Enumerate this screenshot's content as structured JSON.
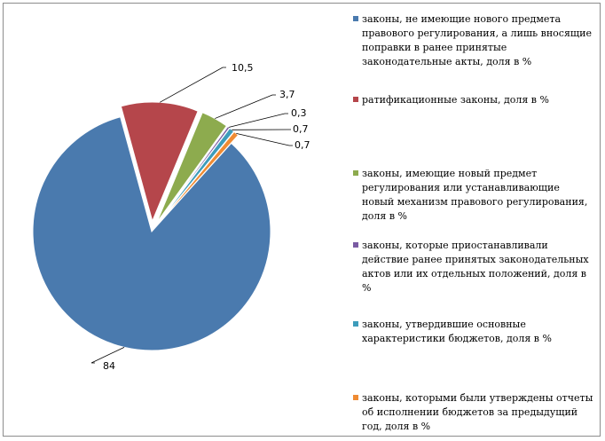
{
  "chart_data": {
    "type": "pie",
    "exploded": true,
    "legend_position": "right",
    "categories": [
      "законы, не имеющие нового предмета правового регулирования, а лишь вносящие поправки в ранее принятые законодательные акты, доля в %",
      "ратификационные законы, доля в %",
      "законы, имеющие новый предмет регулирования или устанавливающие новый механизм правового регулирования, доля в %",
      "законы, которые приостанавливали действие ранее принятых законодательных актов или их отдельных положений, доля в %",
      "законы, утвердившие основные характеристики бюджетов, доля в %",
      "законы, которыми были утверждены отчеты об исполнении бюджетов за предыдущий год, доля в %"
    ],
    "values": [
      84,
      10.5,
      3.7,
      0.3,
      0.7,
      0.7
    ],
    "data_labels": [
      "84",
      "10,5",
      "3,7",
      "0,3",
      "0,7",
      "0,7"
    ],
    "colors": [
      "#4A7AAE",
      "#B5464B",
      "#8DAB4E",
      "#7A5BA3",
      "#3D9CBB",
      "#EF8B33"
    ]
  }
}
